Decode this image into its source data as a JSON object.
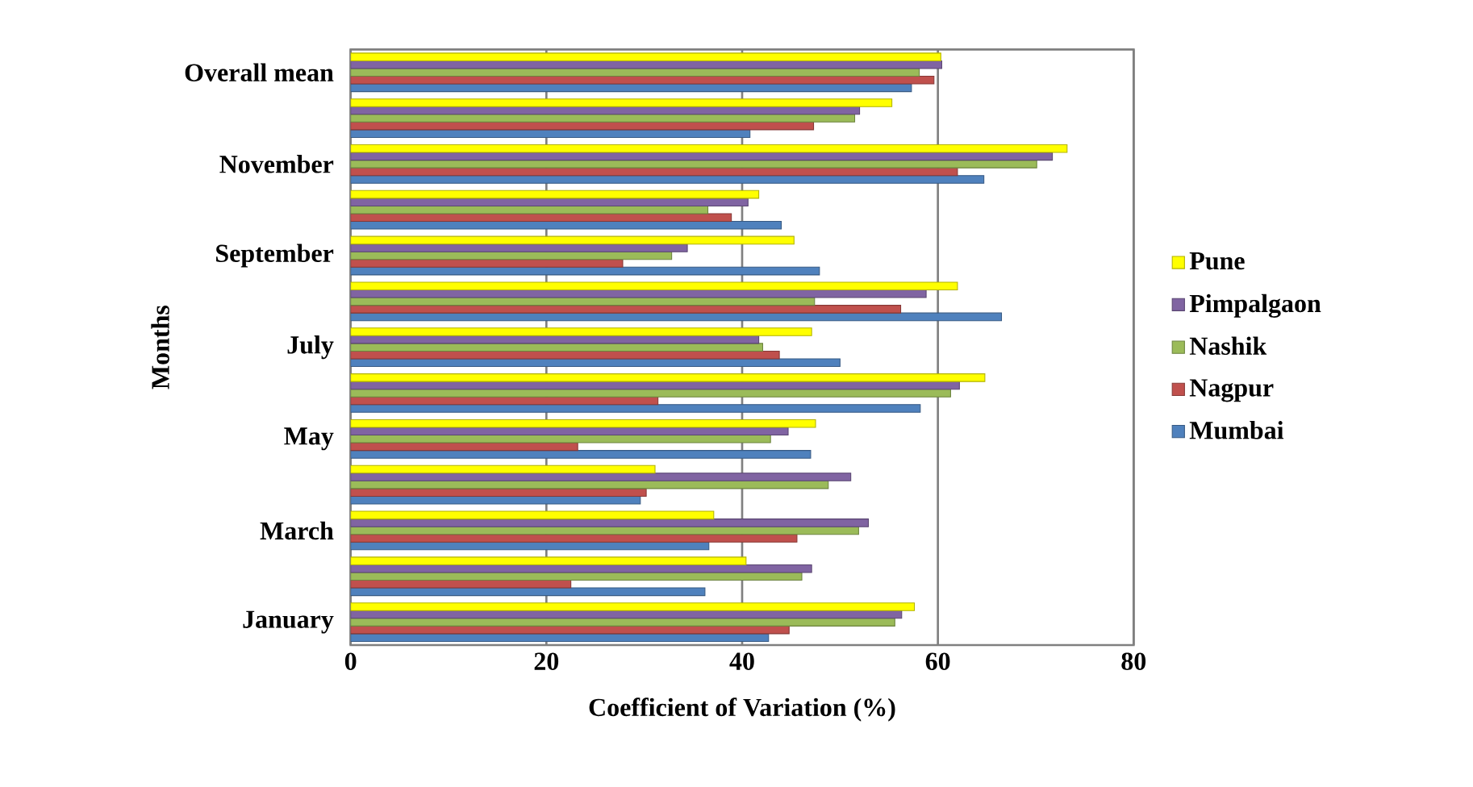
{
  "chart_data": {
    "type": "bar",
    "orientation": "horizontal",
    "xlabel": "Coefficient of Variation (%)",
    "ylabel": "Months",
    "categories": [
      "Overall mean",
      null,
      "November",
      null,
      "September",
      null,
      "July",
      null,
      "May",
      null,
      "March",
      null,
      "January"
    ],
    "series": [
      {
        "name": "Mumbai",
        "color": "#4f81bd",
        "values": [
          57.3,
          40.8,
          64.7,
          44.0,
          47.9,
          66.5,
          50.0,
          58.2,
          47.0,
          29.6,
          36.6,
          36.2,
          42.7
        ]
      },
      {
        "name": "Nagpur",
        "color": "#c0504d",
        "values": [
          59.6,
          47.3,
          62.0,
          38.9,
          27.8,
          56.2,
          43.8,
          31.4,
          23.2,
          30.2,
          45.6,
          22.5,
          44.8
        ]
      },
      {
        "name": "Nashik",
        "color": "#9bbb59",
        "values": [
          58.1,
          51.5,
          70.1,
          36.5,
          32.8,
          47.4,
          42.1,
          61.3,
          42.9,
          48.8,
          51.9,
          46.1,
          55.6
        ]
      },
      {
        "name": "Pimpalgaon",
        "color": "#8064a2",
        "values": [
          60.4,
          52.0,
          71.7,
          40.6,
          34.4,
          58.8,
          41.7,
          62.2,
          44.7,
          51.1,
          52.9,
          47.1,
          56.3
        ]
      },
      {
        "name": "Pune",
        "color": "#ffff00",
        "values": [
          60.3,
          55.3,
          73.2,
          41.7,
          45.3,
          62.0,
          47.1,
          64.8,
          47.5,
          31.1,
          37.1,
          40.4,
          57.6
        ]
      }
    ],
    "xlim": [
      0,
      80
    ],
    "xticks": [
      0,
      20,
      40,
      60,
      80
    ],
    "grid": "x",
    "legend": "right"
  }
}
